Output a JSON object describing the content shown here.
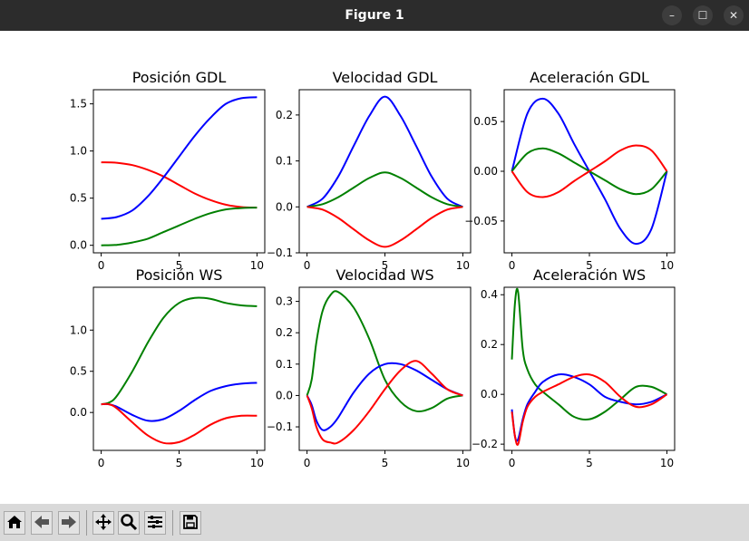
{
  "window": {
    "title": "Figure 1",
    "buttons": {
      "minimize": "–",
      "maximize": "☐",
      "close": "✕"
    }
  },
  "colors": {
    "red": "#ff0000",
    "green": "#008000",
    "blue": "#0000ff",
    "titlebar": "#2c2c2c",
    "toolbar": "#d9d9d9"
  },
  "toolbar": {
    "icons": [
      "home-icon",
      "back-arrow-icon",
      "forward-arrow-icon",
      "pan-icon",
      "zoom-icon",
      "configure-subplots-icon",
      "save-icon"
    ]
  },
  "chart_data": [
    {
      "type": "line",
      "title": "Posición GDL",
      "xlim": [
        -0.5,
        10.5
      ],
      "ylim": [
        -0.08,
        1.65
      ],
      "xticks": [
        0,
        5,
        10
      ],
      "yticks": [
        0.0,
        0.5,
        1.0,
        1.5
      ],
      "xtick_labels": [
        "0",
        "5",
        "10"
      ],
      "ytick_labels": [
        "0.0",
        "0.5",
        "1.0",
        "1.5"
      ],
      "x": [
        0,
        1,
        2,
        3,
        4,
        5,
        6,
        7,
        8,
        9,
        10
      ],
      "series": [
        {
          "color": "red",
          "values": [
            0.88,
            0.875,
            0.85,
            0.8,
            0.73,
            0.64,
            0.55,
            0.48,
            0.43,
            0.405,
            0.4
          ]
        },
        {
          "color": "blue",
          "values": [
            0.28,
            0.3,
            0.37,
            0.52,
            0.72,
            0.94,
            1.16,
            1.35,
            1.5,
            1.56,
            1.57
          ]
        },
        {
          "color": "green",
          "values": [
            0.0,
            0.005,
            0.03,
            0.07,
            0.14,
            0.21,
            0.28,
            0.34,
            0.38,
            0.395,
            0.4
          ]
        }
      ]
    },
    {
      "type": "line",
      "title": "Velocidad GDL",
      "xlim": [
        -0.5,
        10.5
      ],
      "ylim": [
        -0.1,
        0.255
      ],
      "xticks": [
        0,
        5,
        10
      ],
      "yticks": [
        -0.1,
        0.0,
        0.1,
        0.2
      ],
      "xtick_labels": [
        "0",
        "5",
        "10"
      ],
      "ytick_labels": [
        "−0.1",
        "0.0",
        "0.1",
        "0.2"
      ],
      "x": [
        0,
        1,
        2,
        3,
        4,
        5,
        6,
        7,
        8,
        9,
        10
      ],
      "series": [
        {
          "color": "blue",
          "values": [
            0.0,
            0.018,
            0.066,
            0.133,
            0.198,
            0.24,
            0.198,
            0.133,
            0.066,
            0.018,
            0.0
          ]
        },
        {
          "color": "green",
          "values": [
            0.0,
            0.006,
            0.021,
            0.042,
            0.063,
            0.075,
            0.063,
            0.042,
            0.021,
            0.006,
            0.0
          ]
        },
        {
          "color": "red",
          "values": [
            0.0,
            -0.006,
            -0.024,
            -0.049,
            -0.073,
            -0.087,
            -0.073,
            -0.049,
            -0.024,
            -0.006,
            0.0
          ]
        }
      ]
    },
    {
      "type": "line",
      "title": "Aceleración GDL",
      "xlim": [
        -0.5,
        10.5
      ],
      "ylim": [
        -0.082,
        0.082
      ],
      "xticks": [
        0,
        5,
        10
      ],
      "yticks": [
        -0.05,
        0.0,
        0.05
      ],
      "xtick_labels": [
        "0",
        "5",
        "10"
      ],
      "ytick_labels": [
        "−0.05",
        "0.00",
        "0.05"
      ],
      "x": [
        0,
        1,
        2,
        3,
        4,
        5,
        6,
        7,
        8,
        9,
        10
      ],
      "series": [
        {
          "color": "blue",
          "values": [
            0.0,
            0.058,
            0.073,
            0.058,
            0.028,
            0.0,
            -0.028,
            -0.058,
            -0.073,
            -0.058,
            0.0
          ]
        },
        {
          "color": "green",
          "values": [
            0.0,
            0.018,
            0.023,
            0.018,
            0.009,
            0.0,
            -0.009,
            -0.018,
            -0.023,
            -0.018,
            0.0
          ]
        },
        {
          "color": "red",
          "values": [
            0.0,
            -0.021,
            -0.026,
            -0.021,
            -0.01,
            0.0,
            0.01,
            0.021,
            0.026,
            0.021,
            0.0
          ]
        }
      ]
    },
    {
      "type": "line",
      "title": "Posición WS",
      "xlim": [
        -0.5,
        10.5
      ],
      "ylim": [
        -0.46,
        1.52
      ],
      "xticks": [
        0,
        5,
        10
      ],
      "yticks": [
        0.0,
        0.5,
        1.0
      ],
      "xtick_labels": [
        "0",
        "5",
        "10"
      ],
      "ytick_labels": [
        "0.0",
        "0.5",
        "1.0"
      ],
      "x": [
        0,
        0.5,
        1,
        2,
        3,
        4,
        5,
        6,
        7,
        8,
        9,
        10
      ],
      "series": [
        {
          "color": "green",
          "values": [
            0.1,
            0.12,
            0.2,
            0.5,
            0.85,
            1.15,
            1.33,
            1.39,
            1.38,
            1.33,
            1.3,
            1.29
          ]
        },
        {
          "color": "blue",
          "values": [
            0.1,
            0.1,
            0.07,
            -0.03,
            -0.1,
            -0.08,
            0.02,
            0.15,
            0.26,
            0.32,
            0.35,
            0.36
          ]
        },
        {
          "color": "red",
          "values": [
            0.1,
            0.1,
            0.05,
            -0.12,
            -0.28,
            -0.37,
            -0.36,
            -0.27,
            -0.15,
            -0.07,
            -0.04,
            -0.04
          ]
        }
      ]
    },
    {
      "type": "line",
      "title": "Velocidad WS",
      "xlim": [
        -0.5,
        10.5
      ],
      "ylim": [
        -0.175,
        0.345
      ],
      "xticks": [
        0,
        5,
        10
      ],
      "yticks": [
        -0.1,
        0.0,
        0.1,
        0.2,
        0.3
      ],
      "xtick_labels": [
        "0",
        "5",
        "10"
      ],
      "ytick_labels": [
        "−0.1",
        "0.0",
        "0.1",
        "0.2",
        "0.3"
      ],
      "x": [
        0,
        0.3,
        0.6,
        1,
        1.5,
        2,
        3,
        4,
        5,
        6,
        7,
        8,
        9,
        10
      ],
      "series": [
        {
          "color": "green",
          "values": [
            0.0,
            0.05,
            0.17,
            0.27,
            0.32,
            0.33,
            0.28,
            0.18,
            0.05,
            -0.02,
            -0.05,
            -0.04,
            -0.01,
            0.0
          ]
        },
        {
          "color": "blue",
          "values": [
            0.0,
            -0.03,
            -0.08,
            -0.11,
            -0.1,
            -0.07,
            0.01,
            0.07,
            0.1,
            0.1,
            0.08,
            0.05,
            0.02,
            0.0
          ]
        },
        {
          "color": "red",
          "values": [
            0.0,
            -0.04,
            -0.1,
            -0.14,
            -0.15,
            -0.15,
            -0.11,
            -0.05,
            0.02,
            0.08,
            0.11,
            0.07,
            0.02,
            0.0
          ]
        }
      ]
    },
    {
      "type": "line",
      "title": "Aceleración WS",
      "xlim": [
        -0.5,
        10.5
      ],
      "ylim": [
        -0.225,
        0.43
      ],
      "xticks": [
        0,
        5,
        10
      ],
      "yticks": [
        -0.2,
        0.0,
        0.2,
        0.4
      ],
      "xtick_labels": [
        "0",
        "5",
        "10"
      ],
      "ytick_labels": [
        "−0.2",
        "0.0",
        "0.2",
        "0.4"
      ],
      "x": [
        0,
        0.2,
        0.4,
        0.7,
        1,
        1.5,
        2,
        3,
        4,
        5,
        6,
        7,
        8,
        9,
        10
      ],
      "series": [
        {
          "color": "green",
          "values": [
            0.14,
            0.37,
            0.41,
            0.18,
            0.1,
            0.04,
            0.01,
            -0.04,
            -0.09,
            -0.1,
            -0.07,
            -0.02,
            0.03,
            0.03,
            0.0
          ]
        },
        {
          "color": "blue",
          "values": [
            -0.06,
            -0.17,
            -0.18,
            -0.1,
            -0.04,
            0.01,
            0.05,
            0.08,
            0.07,
            0.04,
            -0.01,
            -0.03,
            -0.04,
            -0.03,
            0.0
          ]
        },
        {
          "color": "red",
          "values": [
            -0.07,
            -0.17,
            -0.2,
            -0.11,
            -0.05,
            -0.01,
            0.01,
            0.04,
            0.07,
            0.08,
            0.05,
            -0.01,
            -0.05,
            -0.04,
            0.0
          ]
        }
      ]
    }
  ]
}
